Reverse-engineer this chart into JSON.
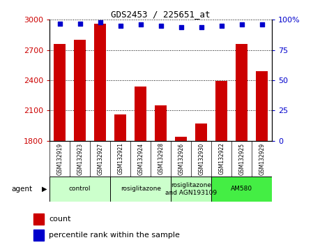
{
  "title": "GDS2453 / 225651_at",
  "samples": [
    "GSM132919",
    "GSM132923",
    "GSM132927",
    "GSM132921",
    "GSM132924",
    "GSM132928",
    "GSM132926",
    "GSM132930",
    "GSM132922",
    "GSM132925",
    "GSM132929"
  ],
  "counts": [
    2760,
    2800,
    2960,
    2060,
    2340,
    2150,
    1840,
    1970,
    2390,
    2760,
    2490
  ],
  "percentiles": [
    97,
    97,
    98,
    95,
    96,
    95,
    94,
    94,
    95,
    96,
    96
  ],
  "ylim_left": [
    1800,
    3000
  ],
  "ylim_right": [
    0,
    100
  ],
  "yticks_left": [
    1800,
    2100,
    2400,
    2700,
    3000
  ],
  "yticks_right": [
    0,
    25,
    50,
    75,
    100
  ],
  "bar_color": "#cc0000",
  "dot_color": "#0000cc",
  "agent_groups": [
    {
      "label": "control",
      "start": 0,
      "end": 2,
      "color": "#ccffcc"
    },
    {
      "label": "rosiglitazone",
      "start": 3,
      "end": 5,
      "color": "#ccffcc"
    },
    {
      "label": "rosiglitazone\nand AGN193109",
      "start": 6,
      "end": 7,
      "color": "#bbffbb"
    },
    {
      "label": "AM580",
      "start": 8,
      "end": 10,
      "color": "#44ee44"
    }
  ],
  "background_color": "#ffffff",
  "plot_bg_color": "#ffffff",
  "left_tick_color": "#cc0000",
  "right_tick_color": "#0000cc",
  "legend_count_label": "count",
  "legend_pct_label": "percentile rank within the sample"
}
